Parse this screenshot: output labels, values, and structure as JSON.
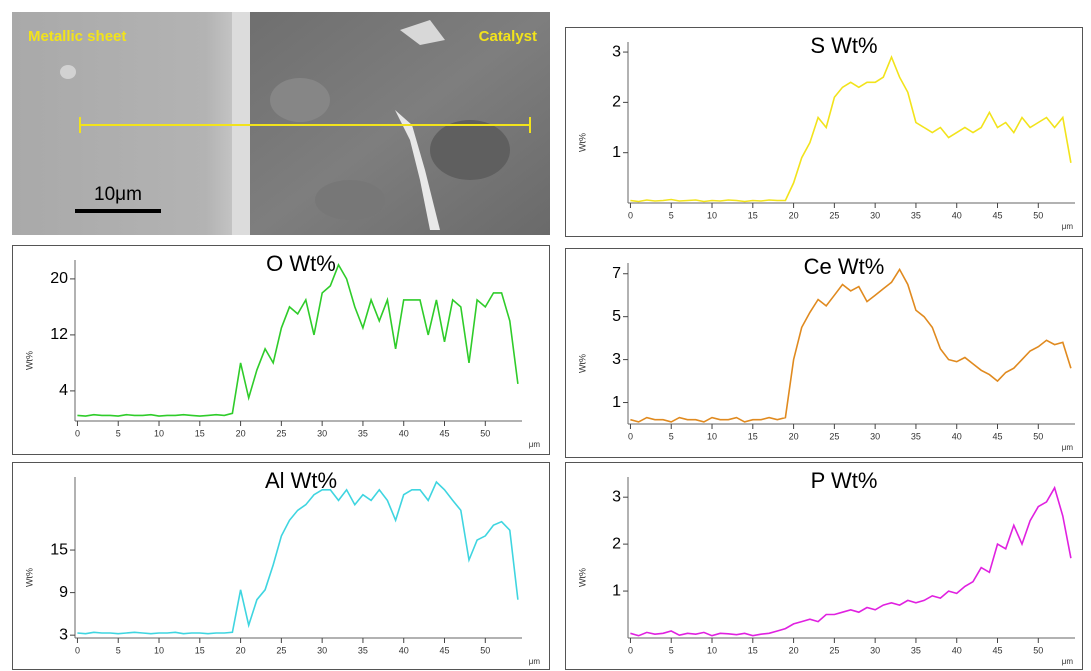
{
  "micrograph": {
    "labels": [
      "Metallic sheet",
      "Catalyst"
    ],
    "scale_bar": "10μm"
  },
  "chart_data": [
    {
      "type": "line",
      "title": "S Wt%",
      "ylabel": "Wt%",
      "xlabel": "μm",
      "color": "#f2e31b",
      "x": [
        0,
        1,
        2,
        3,
        4,
        5,
        6,
        7,
        8,
        9,
        10,
        11,
        12,
        13,
        14,
        15,
        16,
        17,
        18,
        19,
        20,
        21,
        22,
        23,
        24,
        25,
        26,
        27,
        28,
        29,
        30,
        31,
        32,
        33,
        34,
        35,
        36,
        37,
        38,
        39,
        40,
        41,
        42,
        43,
        44,
        45,
        46,
        47,
        48,
        49,
        50,
        51,
        52,
        53,
        54
      ],
      "values": [
        0.05,
        0.03,
        0.06,
        0.04,
        0.05,
        0.07,
        0.04,
        0.05,
        0.06,
        0.03,
        0.05,
        0.04,
        0.06,
        0.05,
        0.03,
        0.05,
        0.04,
        0.06,
        0.05,
        0.05,
        0.4,
        0.9,
        1.2,
        1.7,
        1.5,
        2.1,
        2.3,
        2.4,
        2.3,
        2.4,
        2.4,
        2.5,
        2.9,
        2.5,
        2.2,
        1.6,
        1.5,
        1.4,
        1.5,
        1.3,
        1.4,
        1.5,
        1.4,
        1.5,
        1.8,
        1.5,
        1.6,
        1.4,
        1.7,
        1.5,
        1.6,
        1.7,
        1.5,
        1.7,
        0.8
      ],
      "xlim": [
        -0.3,
        54.5
      ],
      "xticks": [
        0,
        5,
        10,
        15,
        20,
        25,
        30,
        35,
        40,
        45,
        50
      ],
      "ylim": [
        0,
        3.2
      ],
      "yticks": [
        1,
        2,
        3
      ]
    },
    {
      "type": "line",
      "title": "O Wt%",
      "ylabel": "Wt%",
      "xlabel": "μm",
      "color": "#2fcc2a",
      "x": [
        0,
        1,
        2,
        3,
        4,
        5,
        6,
        7,
        8,
        9,
        10,
        11,
        12,
        13,
        14,
        15,
        16,
        17,
        18,
        19,
        20,
        21,
        22,
        23,
        24,
        25,
        26,
        27,
        28,
        29,
        30,
        31,
        32,
        33,
        34,
        35,
        36,
        37,
        38,
        39,
        40,
        41,
        42,
        43,
        44,
        45,
        46,
        47,
        48,
        49,
        50,
        51,
        52,
        53,
        54
      ],
      "values": [
        0.5,
        0.4,
        0.6,
        0.5,
        0.5,
        0.4,
        0.6,
        0.5,
        0.5,
        0.6,
        0.4,
        0.5,
        0.5,
        0.6,
        0.5,
        0.4,
        0.5,
        0.6,
        0.5,
        0.8,
        8,
        3,
        7,
        10,
        8,
        13,
        16,
        15,
        17,
        12,
        18,
        19,
        22,
        20,
        16,
        13,
        17,
        14,
        17,
        10,
        17,
        17,
        17,
        12,
        17,
        11,
        17,
        16,
        8,
        17,
        16,
        18,
        18,
        14,
        5
      ],
      "xlim": [
        -0.3,
        54.5
      ],
      "xticks": [
        0,
        5,
        10,
        15,
        20,
        25,
        30,
        35,
        40,
        45,
        50
      ],
      "ylim": [
        -0.3,
        22.7
      ],
      "yticks": [
        4,
        12,
        20
      ]
    },
    {
      "type": "line",
      "title": "Ce Wt%",
      "ylabel": "Wt%",
      "xlabel": "μm",
      "color": "#e08a1f",
      "x": [
        0,
        1,
        2,
        3,
        4,
        5,
        6,
        7,
        8,
        9,
        10,
        11,
        12,
        13,
        14,
        15,
        16,
        17,
        18,
        19,
        20,
        21,
        22,
        23,
        24,
        25,
        26,
        27,
        28,
        29,
        30,
        31,
        32,
        33,
        34,
        35,
        36,
        37,
        38,
        39,
        40,
        41,
        42,
        43,
        44,
        45,
        46,
        47,
        48,
        49,
        50,
        51,
        52,
        53,
        54
      ],
      "values": [
        0.2,
        0.1,
        0.3,
        0.2,
        0.2,
        0.1,
        0.3,
        0.2,
        0.2,
        0.1,
        0.3,
        0.2,
        0.2,
        0.3,
        0.1,
        0.2,
        0.2,
        0.3,
        0.2,
        0.3,
        3,
        4.5,
        5.2,
        5.8,
        5.5,
        6.0,
        6.5,
        6.2,
        6.4,
        5.7,
        6.0,
        6.3,
        6.6,
        7.2,
        6.5,
        5.3,
        5.0,
        4.5,
        3.5,
        3.0,
        2.9,
        3.1,
        2.8,
        2.5,
        2.3,
        2.0,
        2.4,
        2.6,
        3.0,
        3.4,
        3.6,
        3.9,
        3.7,
        3.8,
        2.6
      ],
      "xlim": [
        -0.3,
        54.5
      ],
      "xticks": [
        0,
        5,
        10,
        15,
        20,
        25,
        30,
        35,
        40,
        45,
        50
      ],
      "ylim": [
        0,
        7.5
      ],
      "yticks": [
        1,
        3,
        5,
        7
      ]
    },
    {
      "type": "line",
      "title": "Al Wt%",
      "ylabel": "Wt%",
      "xlabel": "μm",
      "color": "#3fd5e0",
      "x": [
        0,
        1,
        2,
        3,
        4,
        5,
        6,
        7,
        8,
        9,
        10,
        11,
        12,
        13,
        14,
        15,
        16,
        17,
        18,
        19,
        20,
        21,
        22,
        23,
        24,
        25,
        26,
        27,
        28,
        29,
        30,
        31,
        32,
        33,
        34,
        35,
        36,
        37,
        38,
        39,
        40,
        41,
        42,
        43,
        44,
        45,
        46,
        47,
        48,
        49,
        50,
        51,
        52,
        53,
        54
      ],
      "values": [
        3.3,
        3.2,
        3.4,
        3.3,
        3.3,
        3.2,
        3.3,
        3.4,
        3.3,
        3.2,
        3.3,
        3.3,
        3.4,
        3.2,
        3.3,
        3.3,
        3.2,
        3.3,
        3.3,
        3.4,
        9.4,
        4.4,
        8,
        9.4,
        12.9,
        17,
        19.2,
        20.6,
        21.4,
        22.8,
        23.5,
        23.5,
        22,
        23.5,
        21.4,
        22.8,
        22,
        23.5,
        22,
        19.2,
        22.8,
        23.5,
        23.5,
        22,
        24.6,
        23.5,
        22,
        20.6,
        13.6,
        16.4,
        17,
        18.5,
        19,
        17.8,
        8
      ],
      "xlim": [
        -0.3,
        54.5
      ],
      "xticks": [
        0,
        5,
        10,
        15,
        20,
        25,
        30,
        35,
        40,
        45,
        50
      ],
      "ylim": [
        2.6,
        25.3
      ],
      "yticks": [
        3,
        9,
        15
      ]
    },
    {
      "type": "line",
      "title": "P Wt%",
      "ylabel": "Wt%",
      "xlabel": "μm",
      "color": "#e021e0",
      "x": [
        0,
        1,
        2,
        3,
        4,
        5,
        6,
        7,
        8,
        9,
        10,
        11,
        12,
        13,
        14,
        15,
        16,
        17,
        18,
        19,
        20,
        21,
        22,
        23,
        24,
        25,
        26,
        27,
        28,
        29,
        30,
        31,
        32,
        33,
        34,
        35,
        36,
        37,
        38,
        39,
        40,
        41,
        42,
        43,
        44,
        45,
        46,
        47,
        48,
        49,
        50,
        51,
        52,
        53,
        54
      ],
      "values": [
        0.1,
        0.05,
        0.12,
        0.08,
        0.1,
        0.15,
        0.06,
        0.1,
        0.08,
        0.12,
        0.05,
        0.1,
        0.09,
        0.07,
        0.1,
        0.05,
        0.08,
        0.1,
        0.15,
        0.2,
        0.3,
        0.35,
        0.4,
        0.35,
        0.5,
        0.5,
        0.55,
        0.6,
        0.55,
        0.65,
        0.6,
        0.7,
        0.75,
        0.7,
        0.8,
        0.75,
        0.8,
        0.9,
        0.85,
        1.0,
        0.95,
        1.1,
        1.2,
        1.5,
        1.4,
        2.0,
        1.9,
        2.4,
        2.0,
        2.5,
        2.8,
        2.9,
        3.2,
        2.6,
        1.7
      ],
      "xlim": [
        -0.3,
        54.5
      ],
      "xticks": [
        0,
        5,
        10,
        15,
        20,
        25,
        30,
        35,
        40,
        45,
        50
      ],
      "ylim": [
        0,
        3.43
      ],
      "yticks": [
        1,
        2,
        3
      ]
    }
  ]
}
